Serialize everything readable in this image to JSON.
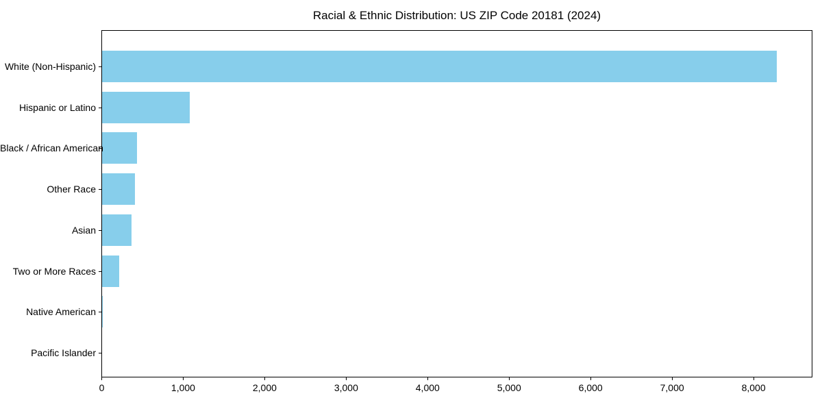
{
  "title": "Racial & Ethnic Distribution: US ZIP Code 20181 (2024)",
  "colors": {
    "bar": "#87CEEB",
    "axis": "#000000",
    "text": "#000000",
    "background": "#FFFFFF"
  },
  "chart_data": {
    "type": "bar",
    "orientation": "horizontal",
    "title": "Racial & Ethnic Distribution: US ZIP Code 20181 (2024)",
    "categories": [
      "White (Non-Hispanic)",
      "Hispanic or Latino",
      "Black / African American",
      "Other Race",
      "Asian",
      "Two or More Races",
      "Native American",
      "Pacific Islander"
    ],
    "values": [
      8290,
      1080,
      430,
      400,
      365,
      210,
      8,
      0
    ],
    "xlabel": "",
    "ylabel": "",
    "xlim": [
      0,
      8718
    ],
    "x_ticks": [
      0,
      1000,
      2000,
      3000,
      4000,
      5000,
      6000,
      7000,
      8000
    ],
    "x_tick_labels": [
      "0",
      "1,000",
      "2,000",
      "3,000",
      "4,000",
      "5,000",
      "6,000",
      "7,000",
      "8,000"
    ],
    "grid": false,
    "legend": false,
    "bar_color": "#87CEEB"
  }
}
